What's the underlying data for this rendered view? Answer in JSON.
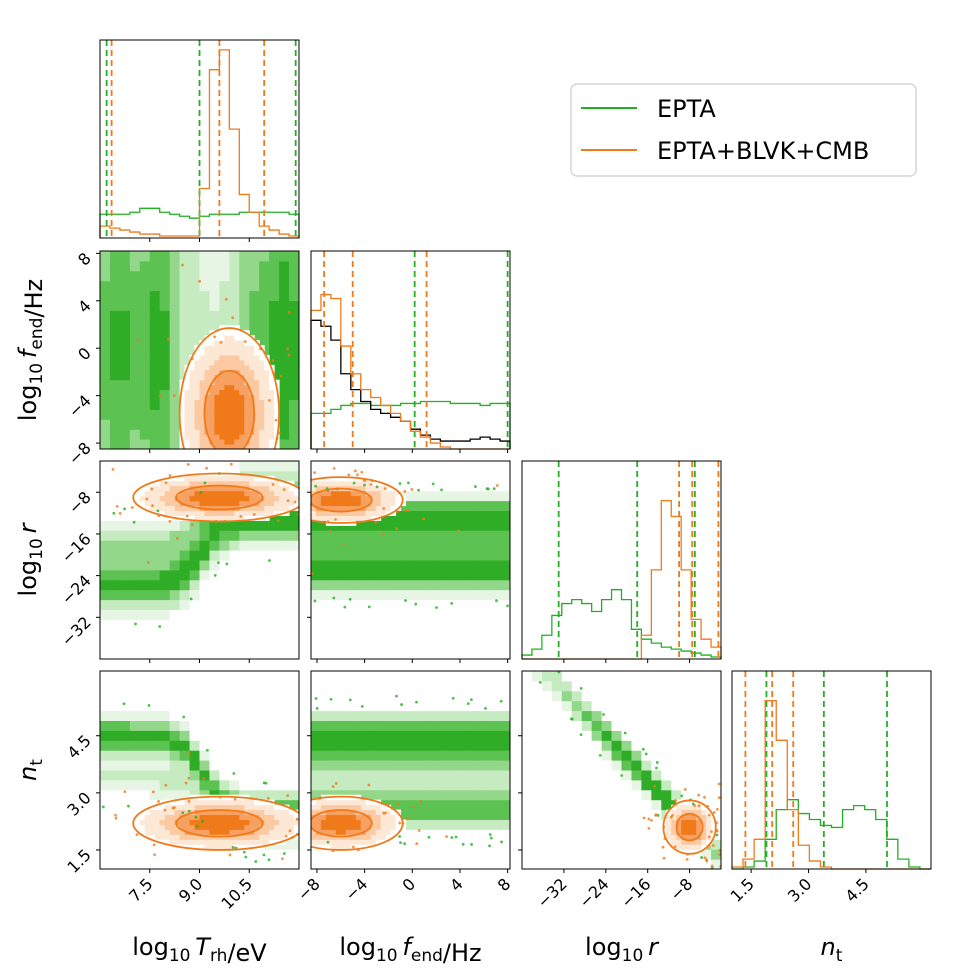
{
  "colors": {
    "epta": "#22b022",
    "combined": "#f07a1a",
    "extra_hist": "#000000",
    "fill_green": [
      "#ffffff",
      "#e7f6e4",
      "#c6ebc0",
      "#93d88a",
      "#5cc251",
      "#2fad26"
    ],
    "fill_orange": [
      "#ffffff",
      "#fde7d5",
      "#fbc9a2",
      "#f6a062",
      "#f07a1a"
    ]
  },
  "chart_data": {
    "type": "corner",
    "parameters": [
      {
        "key": "Trh",
        "label_base": "log",
        "label_sub": "10",
        "label_var": "T",
        "label_var_sub": "rh",
        "label_tail": "/eV",
        "range": [
          6.0,
          12.0
        ],
        "ticks": [
          7.5,
          9.0,
          10.5
        ],
        "tick_labels": [
          "7.5",
          "9.0",
          "10.5"
        ]
      },
      {
        "key": "fend",
        "label_base": "log",
        "label_sub": "10",
        "label_var": "f",
        "label_var_sub": "end",
        "label_tail": "/Hz",
        "range": [
          -8.5,
          8.2
        ],
        "ticks": [
          -8,
          -4,
          0,
          4,
          8
        ],
        "tick_labels": [
          "−8",
          "−4",
          "0",
          "4",
          "8"
        ]
      },
      {
        "key": "r",
        "label_base": "log",
        "label_sub": "10",
        "label_var": "r",
        "label_var_sub": "",
        "label_tail": "",
        "range": [
          -40,
          -2
        ],
        "ticks": [
          -32,
          -24,
          -16,
          -8
        ],
        "tick_labels": [
          "−32",
          "−24",
          "−16",
          "−8"
        ]
      },
      {
        "key": "nt",
        "label_base": "",
        "label_sub": "",
        "label_var": "n",
        "label_var_sub": "t",
        "label_tail": "",
        "range": [
          1.0,
          6.2
        ],
        "ticks": [
          1.5,
          3.0,
          4.5
        ],
        "tick_labels": [
          "1.5",
          "3.0",
          "4.5"
        ]
      }
    ],
    "legend": {
      "position": "top-right",
      "entries": [
        {
          "label": "EPTA",
          "color": "#22b022"
        },
        {
          "label": "EPTA+BLVK+CMB",
          "color": "#f07a1a"
        }
      ]
    },
    "diagonal": [
      {
        "param": "Trh",
        "series": [
          {
            "color": "#22b022",
            "values": [
              0.12,
              0.12,
              0.12,
              0.13,
              0.15,
              0.15,
              0.13,
              0.12,
              0.11,
              0.1,
              0.11,
              0.12,
              0.12,
              0.12,
              0.13,
              0.13,
              0.13,
              0.13,
              0.13,
              0.12
            ],
            "quantiles": [
              6.2,
              9.0,
              11.9
            ]
          },
          {
            "color": "#f07a1a",
            "values": [
              0.06,
              0.05,
              0.04,
              0.03,
              0.02,
              0.02,
              0.01,
              0.01,
              0.01,
              0.01,
              0.25,
              0.85,
              0.95,
              0.55,
              0.22,
              0.13,
              0.06,
              0.04,
              0.02,
              0.01
            ],
            "quantiles": [
              6.35,
              9.6,
              10.95
            ]
          }
        ]
      },
      {
        "param": "fend",
        "series": [
          {
            "color": "#22b022",
            "values": [
              0.18,
              0.18,
              0.2,
              0.22,
              0.23,
              0.23,
              0.22,
              0.22,
              0.22,
              0.23,
              0.23,
              0.24,
              0.24,
              0.24,
              0.23,
              0.23,
              0.23,
              0.22,
              0.23,
              0.23
            ],
            "quantiles": [
              0.2,
              8.0
            ]
          },
          {
            "color": "#000000",
            "values": [
              0.65,
              0.62,
              0.55,
              0.38,
              0.3,
              0.24,
              0.2,
              0.18,
              0.16,
              0.14,
              0.1,
              0.07,
              0.05,
              0.04,
              0.04,
              0.04,
              0.05,
              0.06,
              0.05,
              0.04
            ],
            "quantiles": []
          },
          {
            "color": "#f07a1a",
            "values": [
              0.7,
              0.78,
              0.76,
              0.52,
              0.38,
              0.3,
              0.26,
              0.22,
              0.18,
              0.14,
              0.09,
              0.06,
              0.03,
              0.01,
              0.0,
              0.0,
              0.0,
              0.0,
              0.0,
              0.0
            ],
            "quantiles": [
              -7.4,
              -5.0,
              1.2
            ]
          }
        ]
      },
      {
        "param": "r",
        "series": [
          {
            "color": "#22b022",
            "values": [
              0.02,
              0.05,
              0.12,
              0.22,
              0.28,
              0.3,
              0.28,
              0.24,
              0.3,
              0.35,
              0.3,
              0.15,
              0.1,
              0.08,
              0.06,
              0.05,
              0.04,
              0.03,
              0.02,
              0.01
            ],
            "quantiles": [
              -33,
              -18,
              -7
            ]
          },
          {
            "color": "#f07a1a",
            "values": [
              0,
              0,
              0,
              0,
              0,
              0,
              0,
              0,
              0,
              0,
              0,
              0,
              0.12,
              0.45,
              0.8,
              0.72,
              0.45,
              0.2,
              0.1,
              0.06
            ],
            "quantiles": [
              -10,
              -7.5,
              -2.5
            ]
          }
        ]
      },
      {
        "param": "nt",
        "series": [
          {
            "color": "#22b022",
            "values": [
              0.0,
              0.01,
              0.04,
              0.15,
              0.3,
              0.35,
              0.28,
              0.25,
              0.22,
              0.21,
              0.3,
              0.32,
              0.3,
              0.25,
              0.15,
              0.05,
              0.01,
              0.0
            ],
            "quantiles": [
              1.9,
              3.4,
              5.05
            ]
          },
          {
            "color": "#f07a1a",
            "values": [
              0.01,
              0.05,
              0.15,
              0.85,
              0.65,
              0.3,
              0.12,
              0.04,
              0.01,
              0,
              0,
              0,
              0,
              0,
              0,
              0,
              0,
              0
            ],
            "quantiles": [
              1.35,
              2.05,
              2.6
            ]
          }
        ]
      }
    ],
    "pairs": [
      {
        "row": 1,
        "col": 0,
        "green_mode": "vertical",
        "orange": {
          "cx": 9.9,
          "cy": -5.5,
          "sx": 0.75,
          "sy": 3.6
        }
      },
      {
        "row": 2,
        "col": 0,
        "green_mode": "step",
        "orange": {
          "cx": 9.6,
          "cy": -9,
          "sx": 1.3,
          "sy": 2.3
        }
      },
      {
        "row": 3,
        "col": 0,
        "green_mode": "step_nt",
        "orange": {
          "cx": 9.6,
          "cy": 2.2,
          "sx": 1.3,
          "sy": 0.35
        }
      },
      {
        "row": 2,
        "col": 1,
        "green_mode": "horizontal",
        "orange": {
          "cx": -6,
          "cy": -9.5,
          "sx": 2.6,
          "sy": 2.2
        }
      },
      {
        "row": 3,
        "col": 1,
        "green_mode": "horizontal_nt",
        "orange": {
          "cx": -6,
          "cy": 2.2,
          "sx": 2.6,
          "sy": 0.35
        }
      },
      {
        "row": 3,
        "col": 2,
        "green_mode": "diagonal",
        "orange": {
          "cx": -8,
          "cy": 2.1,
          "sx": 2.5,
          "sy": 0.35
        }
      }
    ]
  }
}
